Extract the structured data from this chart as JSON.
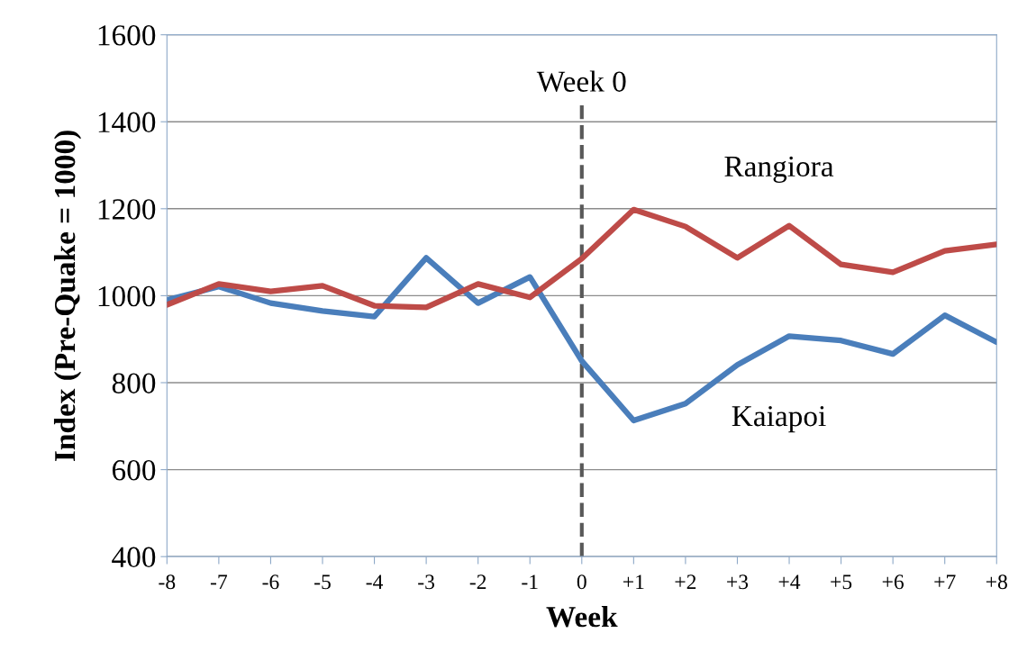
{
  "chart_data": {
    "type": "line",
    "xlabel": "Week",
    "ylabel": "Index (Pre-Quake = 1000)",
    "categories": [
      "-8",
      "-7",
      "-6",
      "-5",
      "-4",
      "-3",
      "-2",
      "-1",
      "0",
      "+1",
      "+2",
      "+3",
      "+4",
      "+5",
      "+6",
      "+7",
      "+8"
    ],
    "series": [
      {
        "name": "Kaiapoi",
        "color": "#4a7ebb",
        "values": [
          990,
          1021,
          983,
          965,
          952,
          1087,
          983,
          1043,
          850,
          713,
          752,
          841,
          907,
          897,
          866,
          955,
          893
        ]
      },
      {
        "name": "Rangiora",
        "color": "#be4b48",
        "values": [
          979,
          1027,
          1010,
          1023,
          977,
          973,
          1027,
          996,
          1085,
          1198,
          1159,
          1087,
          1161,
          1072,
          1054,
          1103,
          1118
        ]
      }
    ],
    "ylim": [
      400,
      1600
    ],
    "yticks": [
      400,
      600,
      800,
      1000,
      1200,
      1400,
      1600
    ],
    "ref_lines": [
      {
        "axis": "x",
        "value": "0",
        "label": "Week 0",
        "color": "#595959",
        "line_style": "dashed"
      }
    ],
    "grid": "y",
    "legend": false,
    "marker": "none",
    "line_style": "solid"
  }
}
